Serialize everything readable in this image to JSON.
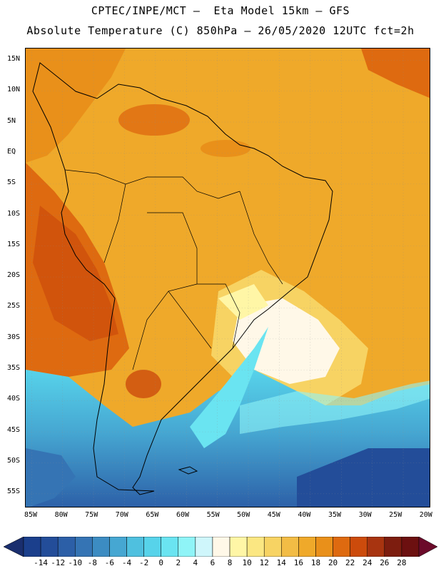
{
  "title_line1": "CPTEC/INPE/MCT –  Eta Model 15km – GFS",
  "title_line2": "Absolute Temperature (C) 850hPa – 26/05/2020 12UTC fct=2h",
  "lat_ticks": [
    "15N",
    "10N",
    "5N",
    "EQ",
    "5S",
    "10S",
    "15S",
    "20S",
    "25S",
    "30S",
    "35S",
    "40S",
    "45S",
    "50S",
    "55S"
  ],
  "lon_ticks": [
    "85W",
    "80W",
    "75W",
    "70W",
    "65W",
    "60W",
    "55W",
    "50W",
    "45W",
    "40W",
    "35W",
    "30W",
    "25W",
    "20W"
  ],
  "colorbar": {
    "labels": [
      "-14",
      "-12",
      "-10",
      "-8",
      "-6",
      "-4",
      "-2",
      "0",
      "2",
      "4",
      "6",
      "8",
      "10",
      "12",
      "14",
      "16",
      "18",
      "20",
      "22",
      "24",
      "26",
      "28"
    ],
    "colors": [
      "#1b3f8c",
      "#234d99",
      "#2c5fa7",
      "#3574b4",
      "#3c8cc2",
      "#46a7d2",
      "#4fc0df",
      "#57d3ea",
      "#6ae4f1",
      "#8ff4f7",
      "#cff6fb",
      "#fff8e8",
      "#fff6a6",
      "#fbe782",
      "#f7d363",
      "#f2bc45",
      "#efa92a",
      "#e9901a",
      "#de6a10",
      "#cc4b0c",
      "#a83410",
      "#7d1d0f",
      "#6c1010"
    ],
    "left_arrow_color": "#1a2e6e",
    "right_arrow_color": "#6b0a2a"
  }
}
